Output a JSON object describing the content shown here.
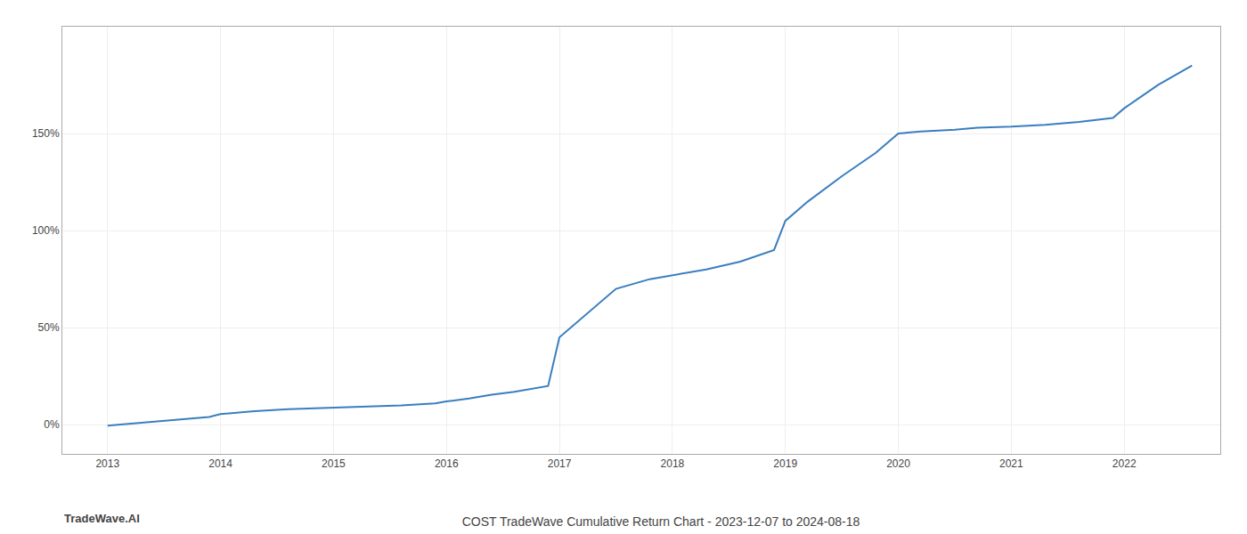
{
  "chart_data": {
    "type": "line",
    "title": "COST TradeWave Cumulative Return Chart - 2023-12-07 to 2024-08-18",
    "annotations": [
      "TradeWave.AI"
    ],
    "color": "#3a7ebf",
    "x": [
      2013.0,
      2013.3,
      2013.6,
      2013.9,
      2014.0,
      2014.3,
      2014.6,
      2014.9,
      2015.0,
      2015.3,
      2015.6,
      2015.9,
      2016.0,
      2016.2,
      2016.4,
      2016.6,
      2016.9,
      2017.0,
      2017.2,
      2017.5,
      2017.8,
      2018.0,
      2018.3,
      2018.6,
      2018.9,
      2019.0,
      2019.2,
      2019.5,
      2019.8,
      2020.0,
      2020.2,
      2020.5,
      2020.7,
      2021.0,
      2021.3,
      2021.6,
      2021.9,
      2022.0,
      2022.3,
      2022.6
    ],
    "values": [
      -0.5,
      1.0,
      2.5,
      4.0,
      5.5,
      7.0,
      8.0,
      8.5,
      9.0,
      9.5,
      10.0,
      11.0,
      12.0,
      13.5,
      15.5,
      17.0,
      20.0,
      45.0,
      55.0,
      70.0,
      75.0,
      77.0,
      80.0,
      84.0,
      90.0,
      105.0,
      115.0,
      128.0,
      140.0,
      150.0,
      151.0,
      152.0,
      153.0,
      153.5,
      154.5,
      156.0,
      158.0,
      163.0,
      175.0,
      185.0
    ],
    "xlim": [
      2012.6,
      2022.85
    ],
    "xticks": [
      2013,
      2014,
      2015,
      2016,
      2017,
      2018,
      2019,
      2020,
      2021,
      2022
    ],
    "ylim": [
      -15,
      205
    ],
    "yticks": [
      {
        "value": 0,
        "label": "0%"
      },
      {
        "value": 50,
        "label": "50%"
      },
      {
        "value": 100,
        "label": "100%"
      },
      {
        "value": 150,
        "label": "150%"
      }
    ],
    "grid": true
  }
}
